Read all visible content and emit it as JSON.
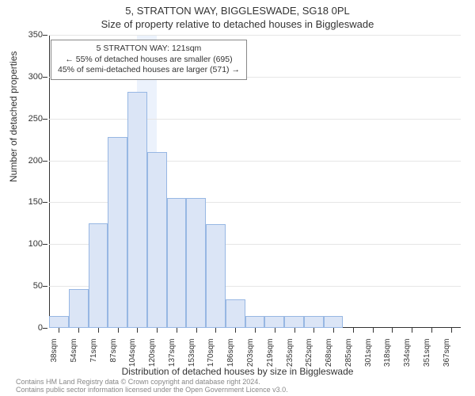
{
  "title_main": "5, STRATTON WAY, BIGGLESWADE, SG18 0PL",
  "title_sub": "Size of property relative to detached houses in Biggleswade",
  "ylabel": "Number of detached properties",
  "xlabel": "Distribution of detached houses by size in Biggleswade",
  "chart": {
    "type": "histogram",
    "xunit_suffix": "sqm",
    "categories": [
      38,
      54,
      71,
      87,
      104,
      120,
      137,
      153,
      170,
      186,
      203,
      219,
      235,
      252,
      268,
      285,
      301,
      318,
      334,
      351,
      367
    ],
    "values": [
      14,
      46,
      125,
      228,
      282,
      210,
      155,
      155,
      124,
      34,
      14,
      14,
      14,
      14,
      14,
      0,
      0,
      0,
      0,
      0,
      0
    ],
    "ylim": [
      0,
      350
    ],
    "ytick_step": 50,
    "bar_fill": "#dbe5f6",
    "bar_border": "#97b7e3",
    "grid_color": "#e6e6e6",
    "axis_color": "#333333",
    "highlight_index": 5,
    "highlight_fill": "rgba(70,130,230,0.10)",
    "label_fontsize": 11,
    "title_fontsize": 13
  },
  "annotation": {
    "line1": "5 STRATTON WAY: 121sqm",
    "line2": "← 55% of detached houses are smaller (695)",
    "line3": "45% of semi-detached houses are larger (571) →",
    "border_color": "#888888"
  },
  "footer": {
    "line1": "Contains HM Land Registry data © Crown copyright and database right 2024.",
    "line2": "Contains public sector information licensed under the Open Government Licence v3.0."
  },
  "colors": {
    "background": "#ffffff",
    "text": "#333333",
    "footer_text": "#888888"
  }
}
